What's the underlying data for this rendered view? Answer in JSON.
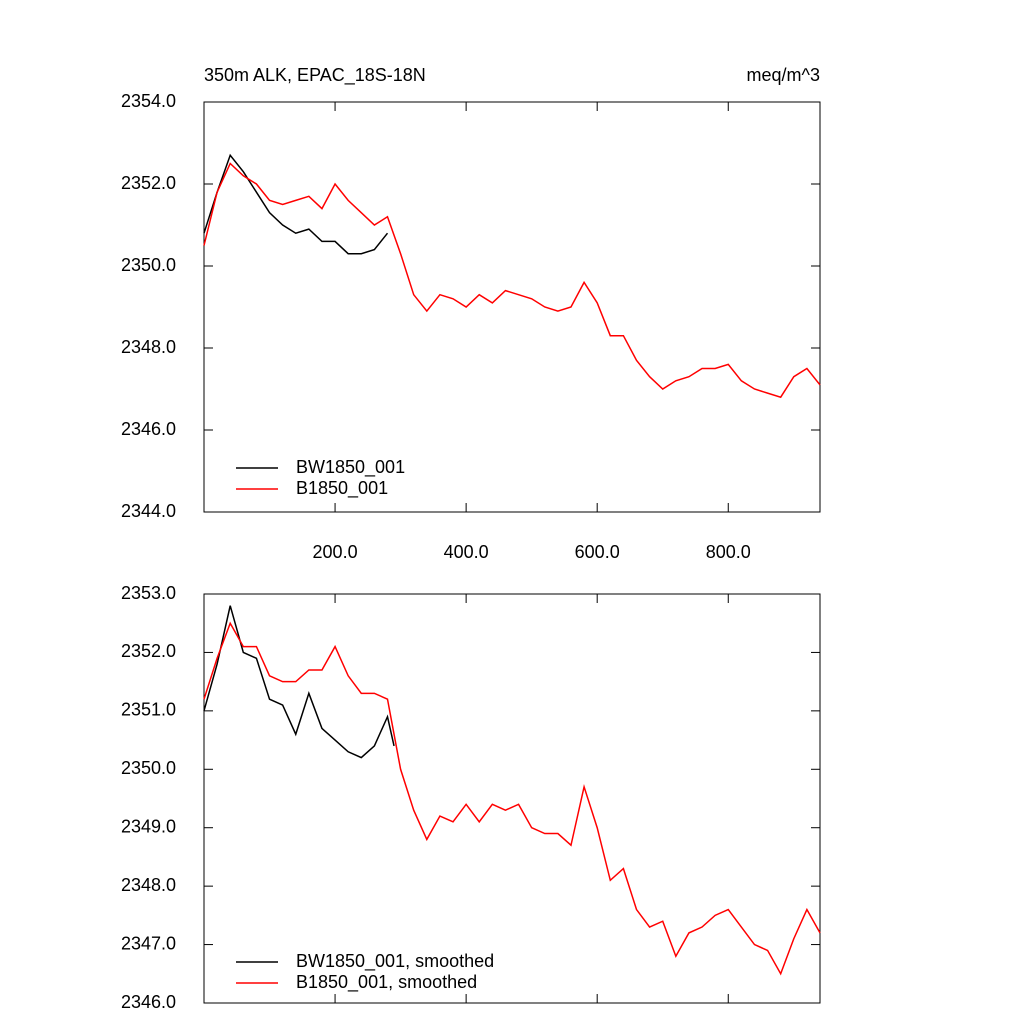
{
  "chart_data": [
    {
      "type": "line",
      "title": "350m ALK, EPAC_18S-18N",
      "units": "meq/m^3",
      "xlim": [
        0,
        940
      ],
      "ylim": [
        2344,
        2354
      ],
      "xticks": [
        {
          "value": 200,
          "label": "200.0"
        },
        {
          "value": 400,
          "label": "400.0"
        },
        {
          "value": 600,
          "label": "600.0"
        },
        {
          "value": 800,
          "label": "800.0"
        }
      ],
      "yticks": [
        {
          "value": 2344,
          "label": "2344.0"
        },
        {
          "value": 2346,
          "label": "2346.0"
        },
        {
          "value": 2348,
          "label": "2348.0"
        },
        {
          "value": 2350,
          "label": "2350.0"
        },
        {
          "value": 2352,
          "label": "2352.0"
        },
        {
          "value": 2354,
          "label": "2354.0"
        }
      ],
      "legend": "lower left",
      "series": [
        {
          "name": "BW1850_001",
          "color": "#000000",
          "x": [
            0,
            20,
            40,
            60,
            80,
            100,
            120,
            140,
            160,
            180,
            200,
            220,
            240,
            260,
            280
          ],
          "values": [
            2350.8,
            2351.8,
            2352.7,
            2352.3,
            2351.8,
            2351.3,
            2351.0,
            2350.8,
            2350.9,
            2350.6,
            2350.6,
            2350.3,
            2350.3,
            2350.4,
            2350.8
          ]
        },
        {
          "name": "B1850_001",
          "color": "#ff0000",
          "x": [
            0,
            20,
            40,
            60,
            80,
            100,
            120,
            140,
            160,
            180,
            200,
            220,
            240,
            260,
            280,
            300,
            320,
            340,
            360,
            380,
            400,
            420,
            440,
            460,
            480,
            500,
            520,
            540,
            560,
            580,
            600,
            620,
            640,
            660,
            680,
            700,
            720,
            740,
            760,
            780,
            800,
            820,
            840,
            860,
            880,
            900,
            920,
            940
          ],
          "values": [
            2350.5,
            2351.8,
            2352.5,
            2352.2,
            2352.0,
            2351.6,
            2351.5,
            2351.6,
            2351.7,
            2351.4,
            2352.0,
            2351.6,
            2351.3,
            2351.0,
            2351.2,
            2350.3,
            2349.3,
            2348.9,
            2349.3,
            2349.2,
            2349.0,
            2349.3,
            2349.1,
            2349.4,
            2349.3,
            2349.2,
            2349.0,
            2348.9,
            2349.0,
            2349.6,
            2349.1,
            2348.3,
            2348.3,
            2347.7,
            2347.3,
            2347.0,
            2347.2,
            2347.3,
            2347.5,
            2347.5,
            2347.6,
            2347.2,
            2347.0,
            2346.9,
            2346.8,
            2347.3,
            2347.5,
            2347.1
          ]
        }
      ]
    },
    {
      "type": "line",
      "xlim": [
        0,
        940
      ],
      "ylim": [
        2346,
        2353
      ],
      "xticks": [
        200,
        400,
        600,
        800
      ],
      "yticks": [
        {
          "value": 2346,
          "label": "2346.0"
        },
        {
          "value": 2347,
          "label": "2347.0"
        },
        {
          "value": 2348,
          "label": "2348.0"
        },
        {
          "value": 2349,
          "label": "2349.0"
        },
        {
          "value": 2350,
          "label": "2350.0"
        },
        {
          "value": 2351,
          "label": "2351.0"
        },
        {
          "value": 2352,
          "label": "2352.0"
        },
        {
          "value": 2353,
          "label": "2353.0"
        }
      ],
      "legend": "lower left",
      "series": [
        {
          "name": "BW1850_001, smoothed",
          "color": "#000000",
          "x": [
            0,
            20,
            40,
            60,
            80,
            100,
            120,
            140,
            160,
            180,
            200,
            220,
            240,
            260,
            280,
            290
          ],
          "values": [
            2351.0,
            2351.8,
            2352.8,
            2352.0,
            2351.9,
            2351.2,
            2351.1,
            2350.6,
            2351.3,
            2350.7,
            2350.5,
            2350.3,
            2350.2,
            2350.4,
            2350.9,
            2350.4
          ]
        },
        {
          "name": "B1850_001, smoothed",
          "color": "#ff0000",
          "x": [
            0,
            20,
            40,
            60,
            80,
            100,
            120,
            140,
            160,
            180,
            200,
            220,
            240,
            260,
            280,
            300,
            320,
            340,
            360,
            380,
            400,
            420,
            440,
            460,
            480,
            500,
            520,
            540,
            560,
            580,
            600,
            620,
            640,
            660,
            680,
            700,
            720,
            740,
            760,
            780,
            800,
            820,
            840,
            860,
            880,
            900,
            920,
            940
          ],
          "values": [
            2351.2,
            2351.9,
            2352.5,
            2352.1,
            2352.1,
            2351.6,
            2351.5,
            2351.5,
            2351.7,
            2351.7,
            2352.1,
            2351.6,
            2351.3,
            2351.3,
            2351.2,
            2350.0,
            2349.3,
            2348.8,
            2349.2,
            2349.1,
            2349.4,
            2349.1,
            2349.4,
            2349.3,
            2349.4,
            2349.0,
            2348.9,
            2348.9,
            2348.7,
            2349.7,
            2349.0,
            2348.1,
            2348.3,
            2347.6,
            2347.3,
            2347.4,
            2346.8,
            2347.2,
            2347.3,
            2347.5,
            2347.6,
            2347.3,
            2347.0,
            2346.9,
            2346.5,
            2347.1,
            2347.6,
            2347.2
          ]
        }
      ]
    }
  ]
}
